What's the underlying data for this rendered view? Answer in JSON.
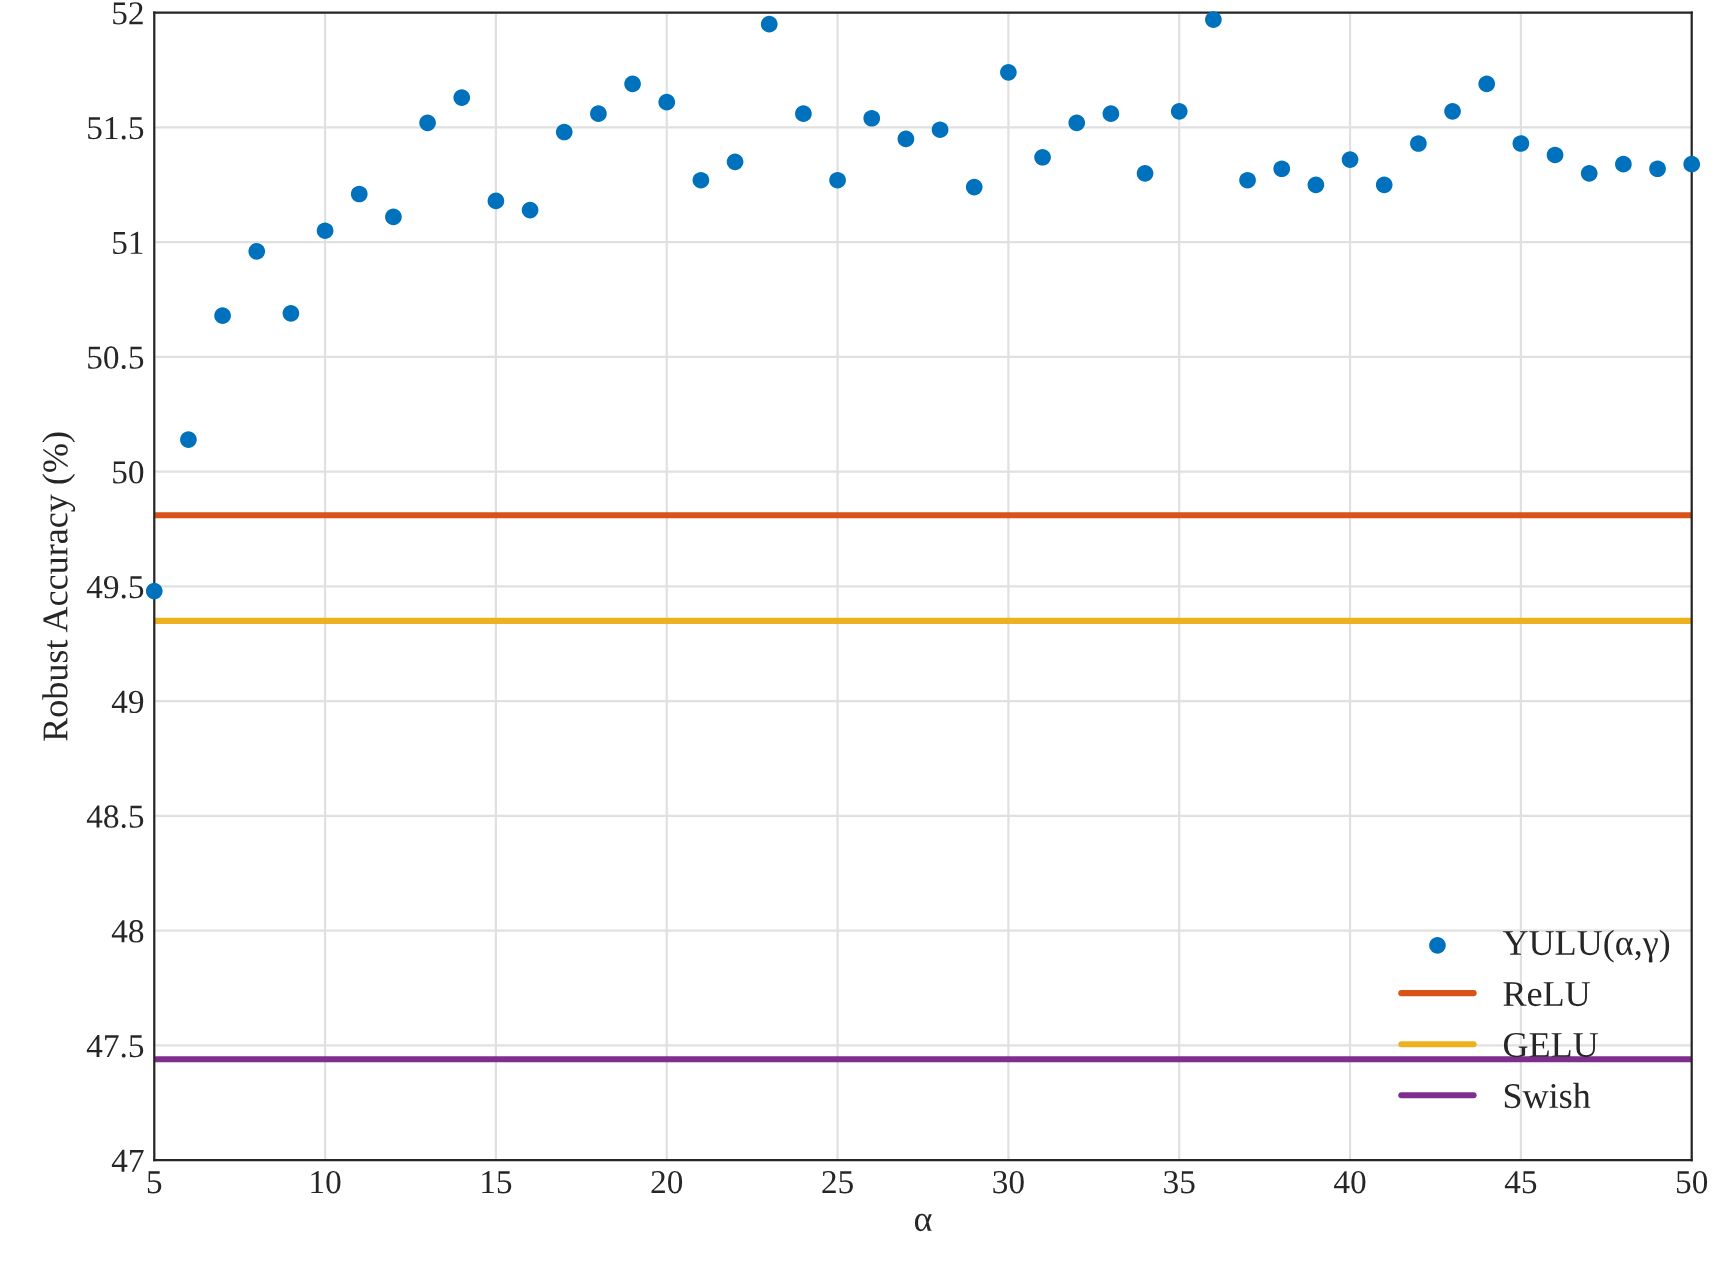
{
  "chart_data": {
    "type": "scatter",
    "xlabel": "α",
    "ylabel": "Robust Accuracy (%)",
    "xlim": [
      5,
      50
    ],
    "xticks": [
      5,
      10,
      15,
      20,
      25,
      30,
      35,
      40,
      45,
      50
    ],
    "ylim": [
      47,
      52
    ],
    "yticks": [
      47,
      47.5,
      48,
      48.5,
      49,
      49.5,
      50,
      50.5,
      51,
      51.5,
      52
    ],
    "grid": true,
    "legend": "bottom right",
    "series": [
      {
        "name": "YULU(α,γ)",
        "marker": "circle",
        "color": "#0072bd",
        "x": [
          5,
          6,
          7,
          8,
          9,
          10,
          11,
          12,
          13,
          14,
          15,
          16,
          17,
          18,
          19,
          20,
          21,
          22,
          23,
          24,
          25,
          26,
          27,
          28,
          29,
          30,
          31,
          32,
          33,
          34,
          35,
          36,
          37,
          38,
          39,
          40,
          41,
          42,
          43,
          44,
          45,
          46,
          47,
          48,
          49,
          50
        ],
        "values": [
          49.48,
          50.14,
          50.68,
          50.96,
          50.69,
          51.05,
          51.21,
          51.11,
          51.52,
          51.63,
          51.18,
          51.14,
          51.48,
          51.56,
          51.69,
          51.61,
          51.27,
          51.35,
          51.95,
          51.56,
          51.27,
          51.54,
          51.45,
          51.49,
          51.24,
          51.74,
          51.37,
          51.52,
          51.56,
          51.3,
          51.57,
          51.97,
          51.27,
          51.32,
          51.25,
          51.36,
          51.25,
          51.43,
          51.57,
          51.69,
          51.43,
          51.38,
          51.3,
          51.34,
          51.32,
          51.34
        ]
      },
      {
        "name": "ReLU",
        "type": "line",
        "color": "#d95319",
        "x": [
          5,
          50
        ],
        "values": [
          49.81,
          49.81
        ]
      },
      {
        "name": "GELU",
        "type": "line",
        "color": "#edb120",
        "x": [
          5,
          50
        ],
        "values": [
          49.35,
          49.35
        ]
      },
      {
        "name": "Swish",
        "type": "line",
        "color": "#7e2f8e",
        "x": [
          5,
          50
        ],
        "values": [
          47.44,
          47.44
        ]
      }
    ]
  }
}
